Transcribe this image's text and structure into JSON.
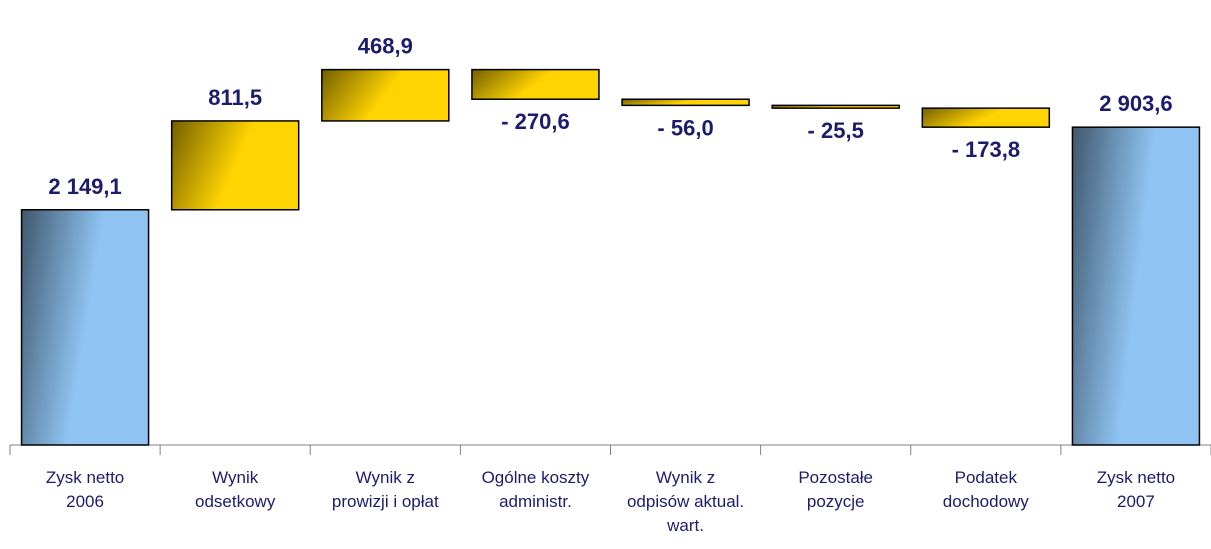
{
  "chart_data": {
    "type": "waterfall",
    "categories": [
      "Zysk netto 2006",
      "Wynik odsetkowy",
      "Wynik z prowizji i opłat",
      "Ogólne koszty administr.",
      "Wynik z odpisów aktual. wart.",
      "Pozostałe pozycje",
      "Podatek dochodowy",
      "Zysk netto 2007"
    ],
    "values": [
      2149.1,
      811.5,
      468.9,
      -270.6,
      -56.0,
      -25.5,
      -173.8,
      2903.6
    ],
    "value_labels": [
      "2 149,1",
      "811,5",
      "468,9",
      "- 270,6",
      "- 56,0",
      "- 25,5",
      "- 173,8",
      "2 903,6"
    ],
    "colors": [
      "#8fc3f2",
      "#ffd400",
      "#ffd400",
      "#ffd400",
      "#ffd400",
      "#ffd400",
      "#ffd400",
      "#8fc3f2"
    ],
    "ylim": [
      0,
      3700
    ]
  }
}
